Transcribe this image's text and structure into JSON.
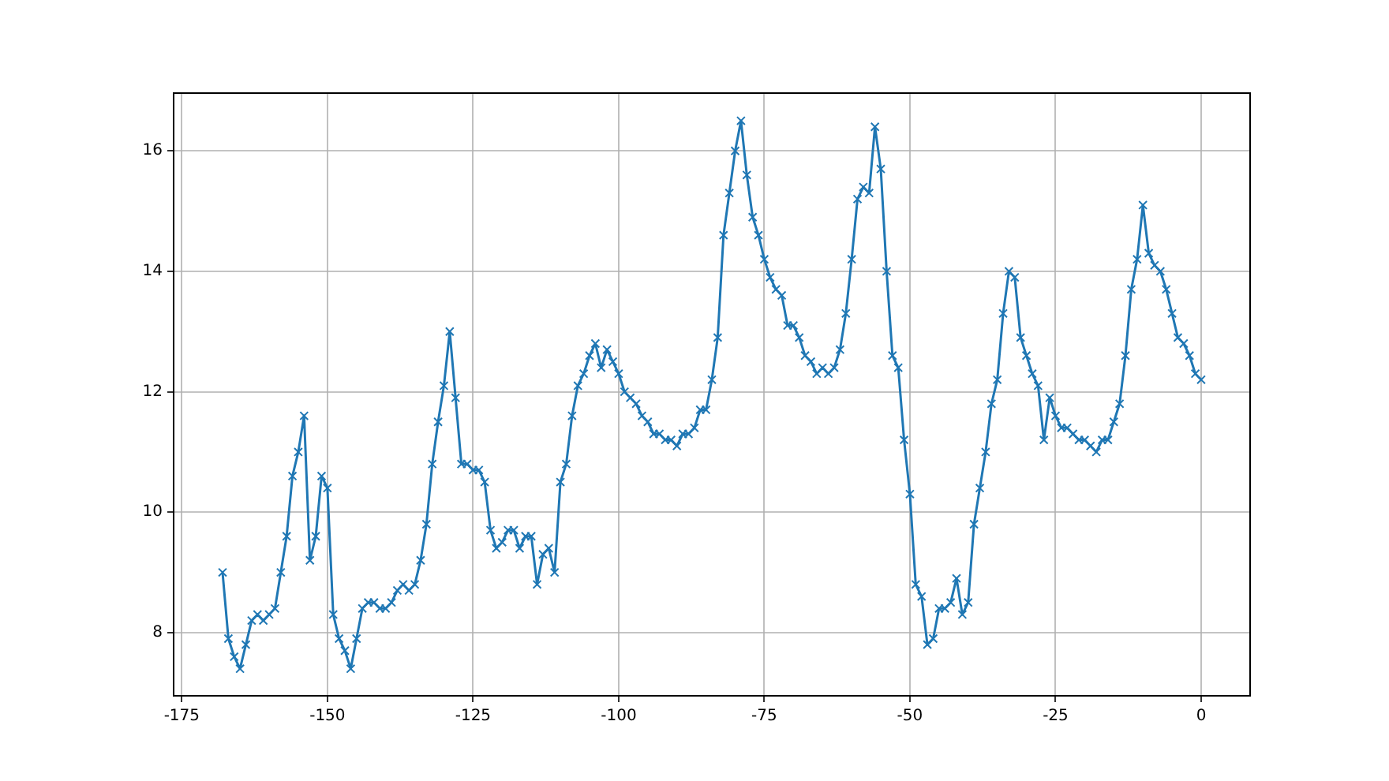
{
  "chart_data": {
    "type": "line",
    "marker": "cross",
    "line_style": "solid",
    "grid": true,
    "xlim": [
      -176.4,
      8.4
    ],
    "xticks": [
      -175,
      -150,
      -125,
      -100,
      -75,
      -50,
      -25,
      0
    ],
    "ylim": [
      6.95,
      16.96
    ],
    "yticks": [
      8,
      10,
      12,
      14,
      16
    ],
    "x": [
      -168,
      -167,
      -166,
      -165,
      -164,
      -163,
      -162,
      -161,
      -160,
      -159,
      -158,
      -157,
      -156,
      -155,
      -154,
      -153,
      -152,
      -151,
      -150,
      -149,
      -148,
      -147,
      -146,
      -145,
      -144,
      -143,
      -142,
      -141,
      -140,
      -139,
      -138,
      -137,
      -136,
      -135,
      -134,
      -133,
      -132,
      -131,
      -130,
      -129,
      -128,
      -127,
      -126,
      -125,
      -124,
      -123,
      -122,
      -121,
      -120,
      -119,
      -118,
      -117,
      -116,
      -115,
      -114,
      -113,
      -112,
      -111,
      -110,
      -109,
      -108,
      -107,
      -106,
      -105,
      -104,
      -103,
      -102,
      -101,
      -100,
      -99,
      -98,
      -97,
      -96,
      -95,
      -94,
      -93,
      -92,
      -91,
      -90,
      -89,
      -88,
      -87,
      -86,
      -85,
      -84,
      -83,
      -82,
      -81,
      -80,
      -79,
      -78,
      -77,
      -76,
      -75,
      -74,
      -73,
      -72,
      -71,
      -70,
      -69,
      -68,
      -67,
      -66,
      -65,
      -64,
      -63,
      -62,
      -61,
      -60,
      -59,
      -58,
      -57,
      -56,
      -55,
      -54,
      -53,
      -52,
      -51,
      -50,
      -49,
      -48,
      -47,
      -46,
      -45,
      -44,
      -43,
      -42,
      -41,
      -40,
      -39,
      -38,
      -37,
      -36,
      -35,
      -34,
      -33,
      -32,
      -31,
      -30,
      -29,
      -28,
      -27,
      -26,
      -25,
      -24,
      -23,
      -22,
      -21,
      -20,
      -19,
      -18,
      -17,
      -16,
      -15,
      -14,
      -13,
      -12,
      -11,
      -10,
      -9,
      -8,
      -7,
      -6,
      -5,
      -4,
      -3,
      -2,
      -1,
      0
    ],
    "series": [
      {
        "color": "#1f77b4",
        "values": [
          9.0,
          7.9,
          7.6,
          7.4,
          7.8,
          8.2,
          8.3,
          8.2,
          8.3,
          8.4,
          9.0,
          9.6,
          10.6,
          11.0,
          11.6,
          9.2,
          9.6,
          10.6,
          10.4,
          8.3,
          7.9,
          7.7,
          7.4,
          7.9,
          8.4,
          8.5,
          8.5,
          8.4,
          8.4,
          8.5,
          8.7,
          8.8,
          8.7,
          8.8,
          9.2,
          9.8,
          10.8,
          11.5,
          12.1,
          13.0,
          11.9,
          10.8,
          10.8,
          10.7,
          10.7,
          10.5,
          9.7,
          9.4,
          9.5,
          9.7,
          9.7,
          9.4,
          9.6,
          9.6,
          8.8,
          9.3,
          9.4,
          9.0,
          10.5,
          10.8,
          11.6,
          12.1,
          12.3,
          12.6,
          12.8,
          12.4,
          12.7,
          12.5,
          12.3,
          12.0,
          11.9,
          11.8,
          11.6,
          11.5,
          11.3,
          11.3,
          11.2,
          11.2,
          11.1,
          11.3,
          11.3,
          11.4,
          11.7,
          11.7,
          12.2,
          12.9,
          14.6,
          15.3,
          16.0,
          16.5,
          15.6,
          14.9,
          14.6,
          14.2,
          13.9,
          13.7,
          13.6,
          13.1,
          13.1,
          12.9,
          12.6,
          12.5,
          12.3,
          12.4,
          12.3,
          12.4,
          12.7,
          13.3,
          14.2,
          15.2,
          15.4,
          15.3,
          16.4,
          15.7,
          14.0,
          12.6,
          12.4,
          11.2,
          10.3,
          8.8,
          8.6,
          7.8,
          7.9,
          8.4,
          8.4,
          8.5,
          8.9,
          8.3,
          8.5,
          9.8,
          10.4,
          11.0,
          11.8,
          12.2,
          13.3,
          14.0,
          13.9,
          12.9,
          12.6,
          12.3,
          12.1,
          11.2,
          11.9,
          11.6,
          11.4,
          11.4,
          11.3,
          11.2,
          11.2,
          11.1,
          11.0,
          11.2,
          11.2,
          11.5,
          11.8,
          12.6,
          13.7,
          14.2,
          15.1,
          14.3,
          14.1,
          14.0,
          13.7,
          13.3,
          12.9,
          12.8,
          12.6,
          12.3,
          12.2
        ]
      }
    ]
  }
}
